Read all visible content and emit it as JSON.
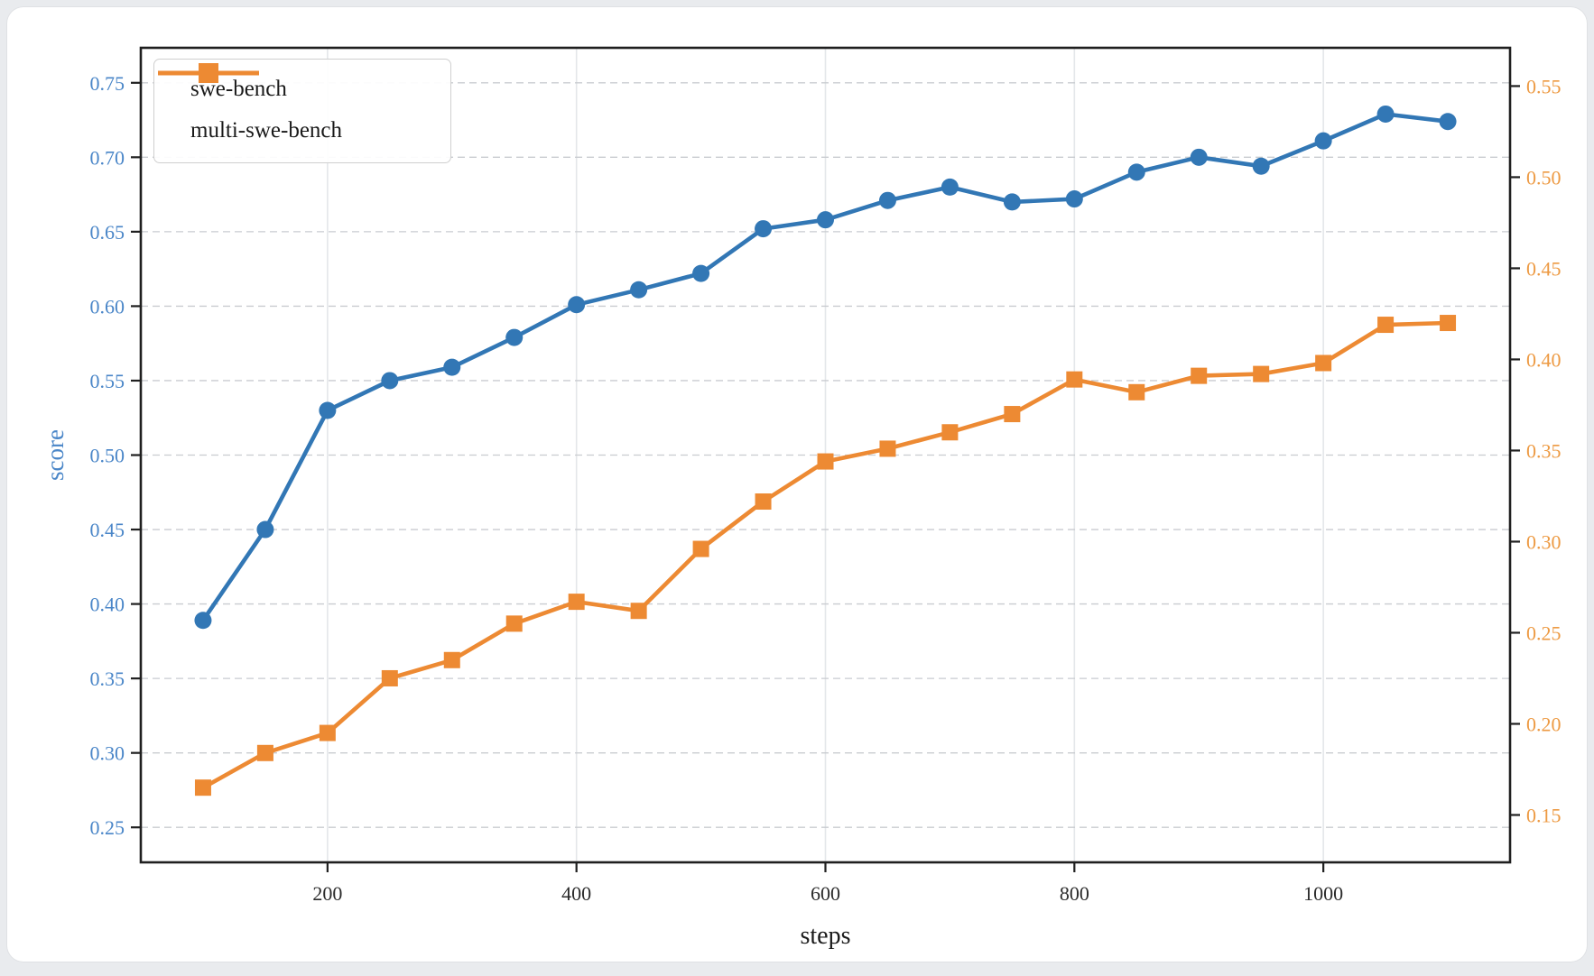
{
  "figure": {
    "page_background": "#e9ebee",
    "card_background": "#ffffff",
    "spine_color": "#1f1f1f",
    "grid_vertical_color": "#e4e7ea",
    "grid_horizontal_color": "#c9ccd0",
    "xtick_label_color": "#2b2b2b",
    "left_tick_label_color": "#4a86c8",
    "right_tick_label_color": "#ed9a43"
  },
  "chart_data": {
    "type": "line",
    "title": "",
    "xlabel": "steps",
    "ylabel_left": "score",
    "ylabel_right": "",
    "legend_position": "upper left",
    "grid": {
      "horizontal": "dashed",
      "vertical": "solid"
    },
    "xlim": [
      50,
      1150
    ],
    "x_ticks": [
      200,
      400,
      600,
      800,
      1000
    ],
    "ylim_left": [
      0.2265,
      0.7735
    ],
    "left_ticks": [
      0.25,
      0.3,
      0.35,
      0.4,
      0.45,
      0.5,
      0.55,
      0.6,
      0.65,
      0.7,
      0.75
    ],
    "ylim_right": [
      0.124,
      0.571
    ],
    "right_ticks": [
      0.15,
      0.2,
      0.25,
      0.3,
      0.35,
      0.4,
      0.45,
      0.5,
      0.55
    ],
    "x": [
      100,
      150,
      200,
      250,
      300,
      350,
      400,
      450,
      500,
      550,
      600,
      650,
      700,
      750,
      800,
      850,
      900,
      950,
      1000,
      1050,
      1100
    ],
    "series": [
      {
        "name": "swe-bench",
        "axis": "left",
        "color": "#3277b5",
        "marker": "circle",
        "values": [
          0.389,
          0.45,
          0.53,
          0.55,
          0.559,
          0.579,
          0.601,
          0.611,
          0.622,
          0.652,
          0.658,
          0.671,
          0.68,
          0.67,
          0.672,
          0.69,
          0.7,
          0.694,
          0.711,
          0.729,
          0.724
        ]
      },
      {
        "name": "multi-swe-bench",
        "axis": "right",
        "color": "#ed8a33",
        "marker": "square",
        "values": [
          0.165,
          0.184,
          0.195,
          0.225,
          0.235,
          0.255,
          0.267,
          0.262,
          0.296,
          0.322,
          0.344,
          0.351,
          0.36,
          0.37,
          0.389,
          0.382,
          0.391,
          0.392,
          0.398,
          0.419,
          0.42
        ]
      }
    ]
  }
}
